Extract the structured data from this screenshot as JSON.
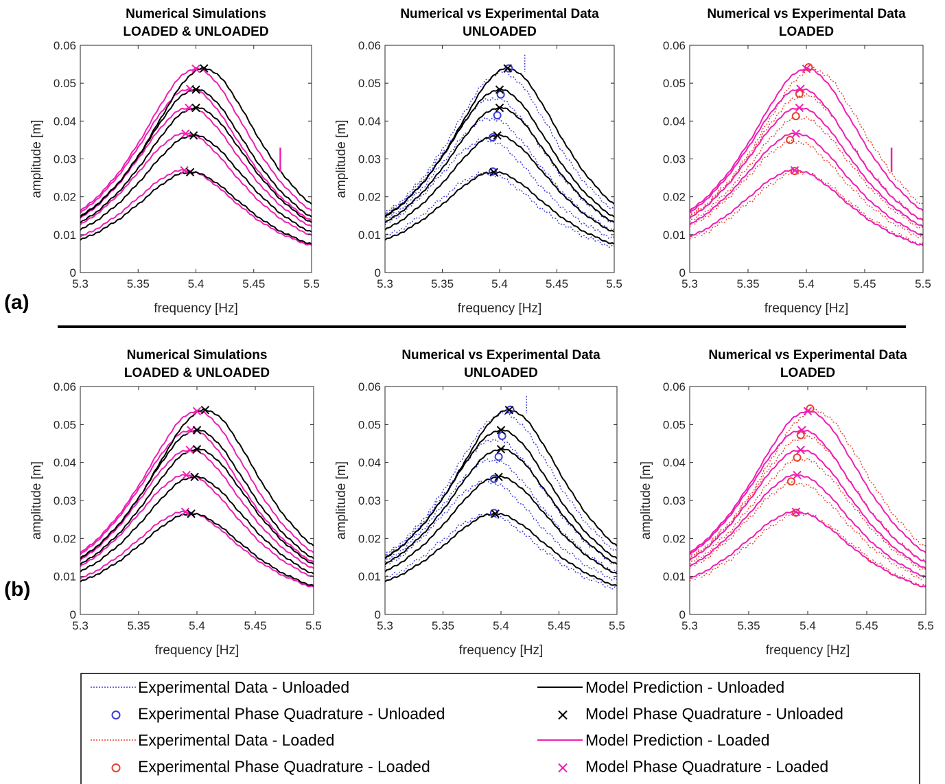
{
  "figure": {
    "row_labels": [
      "(a)",
      "(b)"
    ],
    "colors": {
      "exp_unloaded": "#3b3bdc",
      "exp_loaded": "#e8402e",
      "model_unloaded": "#000000",
      "model_loaded": "#ee1fb4"
    },
    "legend": {
      "items": [
        {
          "label": "Experimental Data - Unloaded",
          "style": "dotted",
          "color": "#3b3bdc"
        },
        {
          "label": "Model Prediction - Unloaded",
          "style": "solid",
          "color": "#000000"
        },
        {
          "label": "Experimental Phase Quadrature - Unloaded",
          "style": "circle",
          "color": "#3b3bdc"
        },
        {
          "label": "Model Phase Quadrature - Unloaded",
          "style": "x",
          "color": "#000000"
        },
        {
          "label": "Experimental Data - Loaded",
          "style": "dotted",
          "color": "#e8402e"
        },
        {
          "label": "Model Prediction - Loaded",
          "style": "solid",
          "color": "#ee1fb4"
        },
        {
          "label": "Experimental Phase Quadrature - Loaded",
          "style": "circle",
          "color": "#e8402e"
        },
        {
          "label": "Model Phase Quadrature - Loaded",
          "style": "x",
          "color": "#ee1fb4"
        }
      ]
    }
  },
  "chart_data": [
    {
      "type": "line",
      "row": "a",
      "title": [
        "Numerical Simulations",
        "LOADED & UNLOADED"
      ],
      "xlabel": "frequency [Hz]",
      "ylabel": "amplitude [m]",
      "xlim": [
        5.3,
        5.5
      ],
      "ylim": [
        0,
        0.06
      ],
      "xticks": [
        "5.3",
        "5.35",
        "5.4",
        "5.45",
        "5.5"
      ],
      "yticks": [
        "0",
        "0.01",
        "0.02",
        "0.03",
        "0.04",
        "0.05",
        "0.06"
      ],
      "show": [
        "model_unloaded",
        "model_loaded"
      ],
      "peaks_model_unloaded": [
        [
          5.395,
          0.0265
        ],
        [
          5.398,
          0.0362
        ],
        [
          5.4,
          0.0435
        ],
        [
          5.4,
          0.0483
        ],
        [
          5.407,
          0.0539
        ]
      ],
      "peaks_model_loaded": [
        [
          5.39,
          0.027
        ],
        [
          5.391,
          0.0367
        ],
        [
          5.394,
          0.0435
        ],
        [
          5.395,
          0.0485
        ],
        [
          5.4,
          0.0538
        ]
      ],
      "spike_loaded_x": 5.473
    },
    {
      "type": "line",
      "row": "a",
      "title": [
        "Numerical vs Experimental Data",
        "UNLOADED"
      ],
      "xlabel": "frequency [Hz]",
      "ylabel": "amplitude [m]",
      "xlim": [
        5.3,
        5.5
      ],
      "ylim": [
        0,
        0.06
      ],
      "xticks": [
        "5.3",
        "5.35",
        "5.4",
        "5.45",
        "5.5"
      ],
      "yticks": [
        "0",
        "0.01",
        "0.02",
        "0.03",
        "0.04",
        "0.05",
        "0.06"
      ],
      "show": [
        "exp_unloaded",
        "model_unloaded"
      ],
      "peaks_model_unloaded": [
        [
          5.395,
          0.0265
        ],
        [
          5.398,
          0.0362
        ],
        [
          5.4,
          0.0435
        ],
        [
          5.4,
          0.0483
        ],
        [
          5.407,
          0.0539
        ]
      ],
      "peaks_exp_unloaded": [
        [
          5.394,
          0.0267
        ],
        [
          5.394,
          0.0357
        ],
        [
          5.398,
          0.0415
        ],
        [
          5.401,
          0.047
        ],
        [
          5.408,
          0.0539
        ]
      ],
      "spike_exp_x": 5.422
    },
    {
      "type": "line",
      "row": "a",
      "title": [
        "Numerical vs Experimental Data",
        "LOADED"
      ],
      "xlabel": "frequency [Hz]",
      "ylabel": "",
      "xlim": [
        5.3,
        5.5
      ],
      "ylim": [
        0,
        0.06
      ],
      "xticks": [
        "5.3",
        "5.35",
        "5.4",
        "5.45",
        "5.5"
      ],
      "yticks": [
        "0",
        "0.01",
        "0.02",
        "0.03",
        "0.04",
        "0.05",
        "0.06"
      ],
      "show": [
        "exp_loaded",
        "model_loaded"
      ],
      "peaks_model_loaded": [
        [
          5.39,
          0.027
        ],
        [
          5.391,
          0.0367
        ],
        [
          5.394,
          0.0435
        ],
        [
          5.395,
          0.0485
        ],
        [
          5.4,
          0.0538
        ]
      ],
      "peaks_exp_loaded": [
        [
          5.39,
          0.0268
        ],
        [
          5.386,
          0.035
        ],
        [
          5.391,
          0.0413
        ],
        [
          5.394,
          0.0472
        ],
        [
          5.402,
          0.0542
        ]
      ],
      "spike_loaded_x": 5.473
    },
    {
      "type": "line",
      "row": "b",
      "title": [
        "Numerical Simulations",
        "LOADED & UNLOADED"
      ],
      "xlabel": "frequency [Hz]",
      "ylabel": "amplitude [m]",
      "xlim": [
        5.3,
        5.5
      ],
      "ylim": [
        0,
        0.06
      ],
      "xticks": [
        "5.3",
        "5.35",
        "5.4",
        "5.45",
        "5.5"
      ],
      "yticks": [
        "0",
        "0.01",
        "0.02",
        "0.03",
        "0.04",
        "0.05",
        "0.06"
      ],
      "show": [
        "model_unloaded",
        "model_loaded"
      ],
      "peaks_model_unloaded": [
        [
          5.395,
          0.0265
        ],
        [
          5.398,
          0.0362
        ],
        [
          5.4,
          0.0435
        ],
        [
          5.4,
          0.0485
        ],
        [
          5.407,
          0.0538
        ]
      ],
      "peaks_model_loaded": [
        [
          5.39,
          0.027
        ],
        [
          5.391,
          0.0367
        ],
        [
          5.394,
          0.0433
        ],
        [
          5.395,
          0.0485
        ],
        [
          5.4,
          0.0535
        ]
      ]
    },
    {
      "type": "line",
      "row": "b",
      "title": [
        "Numerical vs Experimental Data",
        "UNLOADED"
      ],
      "xlabel": "frequency [Hz]",
      "ylabel": "amplitude [m]",
      "xlim": [
        5.3,
        5.5
      ],
      "ylim": [
        0,
        0.06
      ],
      "xticks": [
        "5.3",
        "5.35",
        "5.4",
        "5.45",
        "5.5"
      ],
      "yticks": [
        "0",
        "0.01",
        "0.02",
        "0.03",
        "0.04",
        "0.05",
        "0.06"
      ],
      "show": [
        "exp_unloaded",
        "model_unloaded"
      ],
      "peaks_model_unloaded": [
        [
          5.395,
          0.0265
        ],
        [
          5.398,
          0.0362
        ],
        [
          5.4,
          0.0435
        ],
        [
          5.4,
          0.0485
        ],
        [
          5.407,
          0.0538
        ]
      ],
      "peaks_exp_unloaded": [
        [
          5.394,
          0.0267
        ],
        [
          5.394,
          0.0357
        ],
        [
          5.398,
          0.0415
        ],
        [
          5.401,
          0.047
        ],
        [
          5.408,
          0.0539
        ]
      ],
      "spike_exp_x": 5.422
    },
    {
      "type": "line",
      "row": "b",
      "title": [
        "Numerical vs Experimental Data",
        "LOADED"
      ],
      "xlabel": "frequency [Hz]",
      "ylabel": "amplitude [m]",
      "xlim": [
        5.3,
        5.5
      ],
      "ylim": [
        0,
        0.06
      ],
      "xticks": [
        "5.3",
        "5.35",
        "5.4",
        "5.45",
        "5.5"
      ],
      "yticks": [
        "0",
        "0.01",
        "0.02",
        "0.03",
        "0.04",
        "0.05",
        "0.06"
      ],
      "show": [
        "exp_loaded",
        "model_loaded"
      ],
      "peaks_model_loaded": [
        [
          5.39,
          0.027
        ],
        [
          5.391,
          0.0367
        ],
        [
          5.394,
          0.0433
        ],
        [
          5.395,
          0.0485
        ],
        [
          5.4,
          0.0535
        ]
      ],
      "peaks_exp_loaded": [
        [
          5.39,
          0.0268
        ],
        [
          5.386,
          0.035
        ],
        [
          5.391,
          0.0413
        ],
        [
          5.394,
          0.0472
        ],
        [
          5.402,
          0.0542
        ]
      ]
    }
  ]
}
